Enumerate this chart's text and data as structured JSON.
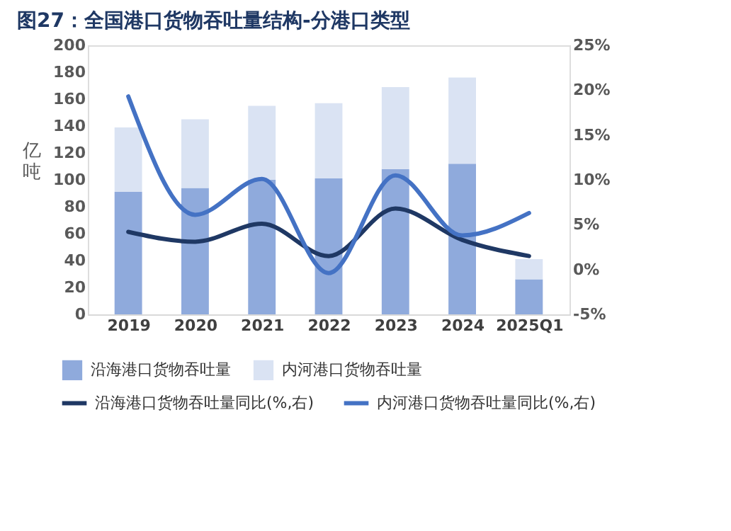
{
  "chart_data": {
    "type": "bar",
    "title": "图27：全国港口货物吞吐量结构-分港口类型",
    "ylabel": "亿吨",
    "stacked": true,
    "categories": [
      "2019",
      "2020",
      "2021",
      "2022",
      "2023",
      "2024",
      "2025Q1"
    ],
    "series": [
      {
        "name": "沿海港口货物吞吐量",
        "color": "#8faadc",
        "values": [
          91,
          94,
          100,
          101,
          108,
          112,
          26
        ]
      },
      {
        "name": "内河港口货物吞吐量",
        "color": "#dae3f3",
        "values": [
          48,
          51,
          55,
          56,
          61,
          64,
          15
        ]
      },
      {
        "name": "沿海港口货物吞吐量同比(%,右)",
        "type": "line",
        "axis": "y2",
        "color": "#1f3864",
        "values": [
          4.2,
          3.1,
          5.1,
          1.5,
          6.8,
          3.3,
          1.5
        ]
      },
      {
        "name": "内河港口货物吞吐量同比(%,右)",
        "type": "line",
        "axis": "y2",
        "color": "#4472c4",
        "values": [
          19.3,
          6.1,
          10.1,
          -0.4,
          10.5,
          3.8,
          6.3
        ]
      }
    ],
    "ylim": [
      0,
      200
    ],
    "yticks": [
      0,
      20,
      40,
      60,
      80,
      100,
      120,
      140,
      160,
      180,
      200
    ],
    "y2lim": [
      -5,
      25
    ],
    "y2ticks": [
      {
        "value": -5,
        "label": "-5%"
      },
      {
        "value": 0,
        "label": "0%"
      },
      {
        "value": 5,
        "label": "5%"
      },
      {
        "value": 10,
        "label": "10%"
      },
      {
        "value": 15,
        "label": "15%"
      },
      {
        "value": 20,
        "label": "20%"
      },
      {
        "value": 25,
        "label": "25%"
      }
    ],
    "grid": false,
    "legend": "bottom",
    "line_style": "solid",
    "marker": "none"
  }
}
